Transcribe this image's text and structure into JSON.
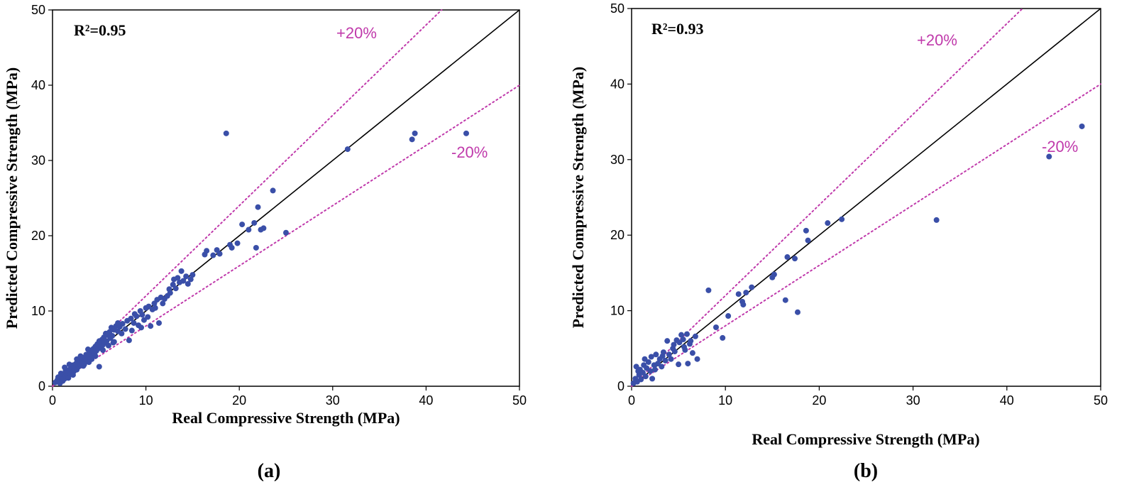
{
  "chart_data": [
    {
      "type": "scatter",
      "panel_label": "(a)",
      "r2_label": "R²=0.95",
      "xlabel": "Real Compressive Strength (MPa)",
      "ylabel": "Predicted Compressive Strength (MPa)",
      "xlim": [
        0,
        50
      ],
      "ylim": [
        0,
        50
      ],
      "xticks": [
        "0",
        "10",
        "20",
        "30",
        "40",
        "50"
      ],
      "yticks": [
        "0",
        "10",
        "20",
        "30",
        "40",
        "50"
      ],
      "plus_label": "+20%",
      "minus_label": "-20%",
      "point_color": "#3a4fa8",
      "band_color": "#c03aab",
      "points": [
        [
          0.3,
          0.5
        ],
        [
          0.5,
          0.8
        ],
        [
          0.6,
          1.2
        ],
        [
          0.8,
          0.4
        ],
        [
          1.0,
          1.1
        ],
        [
          1.1,
          0.7
        ],
        [
          1.2,
          1.5
        ],
        [
          1.3,
          1.0
        ],
        [
          1.4,
          2.0
        ],
        [
          1.5,
          1.3
        ],
        [
          1.6,
          1.8
        ],
        [
          1.7,
          1.1
        ],
        [
          1.8,
          2.2
        ],
        [
          1.9,
          1.6
        ],
        [
          2.0,
          2.4
        ],
        [
          2.1,
          1.9
        ],
        [
          2.2,
          2.8
        ],
        [
          2.3,
          2.0
        ],
        [
          2.4,
          2.5
        ],
        [
          2.5,
          3.0
        ],
        [
          2.6,
          2.2
        ],
        [
          2.7,
          2.9
        ],
        [
          2.8,
          2.6
        ],
        [
          2.9,
          3.3
        ],
        [
          3.0,
          2.8
        ],
        [
          3.1,
          3.6
        ],
        [
          3.2,
          3.1
        ],
        [
          3.3,
          2.7
        ],
        [
          3.4,
          3.8
        ],
        [
          3.5,
          3.3
        ],
        [
          3.6,
          4.2
        ],
        [
          3.7,
          3.5
        ],
        [
          3.8,
          4.0
        ],
        [
          3.9,
          3.2
        ],
        [
          4.0,
          4.5
        ],
        [
          4.1,
          3.9
        ],
        [
          4.2,
          4.8
        ],
        [
          4.3,
          4.1
        ],
        [
          4.4,
          5.0
        ],
        [
          4.5,
          4.4
        ],
        [
          4.6,
          5.3
        ],
        [
          4.7,
          4.7
        ],
        [
          4.8,
          5.6
        ],
        [
          4.9,
          5.0
        ],
        [
          5.0,
          2.6
        ],
        [
          5.1,
          5.9
        ],
        [
          5.2,
          5.2
        ],
        [
          5.3,
          6.2
        ],
        [
          5.4,
          5.5
        ],
        [
          5.5,
          6.5
        ],
        [
          5.6,
          5.8
        ],
        [
          5.7,
          7.0
        ],
        [
          5.8,
          6.0
        ],
        [
          5.9,
          6.8
        ],
        [
          6.0,
          5.4
        ],
        [
          6.1,
          7.2
        ],
        [
          6.2,
          6.4
        ],
        [
          6.3,
          7.8
        ],
        [
          6.4,
          6.7
        ],
        [
          6.5,
          5.8
        ],
        [
          6.6,
          7.5
        ],
        [
          6.8,
          8.0
        ],
        [
          7.0,
          7.3
        ],
        [
          7.2,
          7.9
        ],
        [
          7.5,
          8.3
        ],
        [
          7.8,
          7.6
        ],
        [
          8.0,
          8.7
        ],
        [
          8.2,
          6.1
        ],
        [
          8.4,
          9.0
        ],
        [
          8.5,
          7.4
        ],
        [
          8.7,
          8.4
        ],
        [
          9.0,
          9.3
        ],
        [
          9.2,
          8.1
        ],
        [
          9.4,
          10.0
        ],
        [
          9.6,
          9.5
        ],
        [
          9.8,
          8.8
        ],
        [
          10.0,
          10.4
        ],
        [
          10.3,
          10.6
        ],
        [
          10.5,
          8.0
        ],
        [
          10.7,
          10.2
        ],
        [
          10.9,
          11.0
        ],
        [
          11.2,
          11.5
        ],
        [
          11.4,
          8.4
        ],
        [
          11.6,
          11.8
        ],
        [
          12.0,
          11.6
        ],
        [
          12.3,
          12.0
        ],
        [
          12.6,
          12.4
        ],
        [
          12.9,
          13.5
        ],
        [
          13.2,
          13.0
        ],
        [
          13.4,
          14.4
        ],
        [
          13.6,
          13.8
        ],
        [
          13.8,
          15.3
        ],
        [
          14.0,
          14.0
        ],
        [
          14.3,
          14.6
        ],
        [
          14.5,
          13.6
        ],
        [
          15.0,
          14.8
        ],
        [
          16.3,
          17.5
        ],
        [
          16.5,
          18.0
        ],
        [
          17.2,
          17.4
        ],
        [
          17.6,
          18.1
        ],
        [
          17.9,
          17.6
        ],
        [
          18.6,
          33.6
        ],
        [
          19.0,
          18.8
        ],
        [
          19.2,
          18.4
        ],
        [
          19.8,
          19.0
        ],
        [
          20.3,
          21.5
        ],
        [
          21.0,
          20.8
        ],
        [
          21.6,
          21.7
        ],
        [
          21.8,
          18.4
        ],
        [
          22.0,
          23.8
        ],
        [
          22.3,
          20.8
        ],
        [
          22.6,
          21.0
        ],
        [
          23.6,
          26.0
        ],
        [
          25.0,
          20.4
        ],
        [
          31.6,
          31.5
        ],
        [
          38.5,
          32.8
        ],
        [
          38.8,
          33.6
        ],
        [
          44.3,
          33.6
        ],
        [
          0.9,
          1.7
        ],
        [
          1.3,
          2.5
        ],
        [
          1.8,
          2.9
        ],
        [
          2.2,
          1.5
        ],
        [
          2.6,
          3.6
        ],
        [
          3.0,
          4.0
        ],
        [
          3.4,
          2.9
        ],
        [
          3.8,
          4.9
        ],
        [
          4.2,
          3.6
        ],
        [
          4.6,
          4.0
        ],
        [
          5.0,
          6.0
        ],
        [
          5.4,
          4.8
        ],
        [
          6.0,
          6.9
        ],
        [
          6.6,
          5.9
        ],
        [
          7.0,
          8.4
        ],
        [
          7.4,
          7.0
        ],
        [
          8.8,
          9.6
        ],
        [
          9.5,
          7.8
        ],
        [
          10.2,
          9.2
        ],
        [
          11.0,
          10.4
        ],
        [
          11.8,
          11.0
        ],
        [
          12.5,
          12.9
        ],
        [
          13.0,
          14.2
        ],
        [
          14.8,
          14.2
        ]
      ]
    },
    {
      "type": "scatter",
      "panel_label": "(b)",
      "r2_label": "R²=0.93",
      "xlabel": "Real Compressive Strength (MPa)",
      "ylabel": "Predicted Compressive Strength (MPa)",
      "xlim": [
        0,
        50
      ],
      "ylim": [
        0,
        50
      ],
      "xticks": [
        "0",
        "10",
        "20",
        "30",
        "40",
        "50"
      ],
      "yticks": [
        "0",
        "10",
        "20",
        "30",
        "40",
        "50"
      ],
      "plus_label": "+20%",
      "minus_label": "-20%",
      "point_color": "#3a4fa8",
      "band_color": "#c03aab",
      "points": [
        [
          0.2,
          0.4
        ],
        [
          0.4,
          1.0
        ],
        [
          0.5,
          2.6
        ],
        [
          0.6,
          0.6
        ],
        [
          0.8,
          1.5
        ],
        [
          0.9,
          2.2
        ],
        [
          1.0,
          0.9
        ],
        [
          1.2,
          1.8
        ],
        [
          1.3,
          2.8
        ],
        [
          1.5,
          1.3
        ],
        [
          1.6,
          2.4
        ],
        [
          1.8,
          3.2
        ],
        [
          2.0,
          2.0
        ],
        [
          2.1,
          3.9
        ],
        [
          2.2,
          1.0
        ],
        [
          2.4,
          2.8
        ],
        [
          2.6,
          4.2
        ],
        [
          2.8,
          3.0
        ],
        [
          3.0,
          3.6
        ],
        [
          3.2,
          2.6
        ],
        [
          3.4,
          4.5
        ],
        [
          3.6,
          3.4
        ],
        [
          3.8,
          6.0
        ],
        [
          4.0,
          4.2
        ],
        [
          4.2,
          3.6
        ],
        [
          4.4,
          5.0
        ],
        [
          4.6,
          4.6
        ],
        [
          4.8,
          6.1
        ],
        [
          5.0,
          2.9
        ],
        [
          5.1,
          5.8
        ],
        [
          5.3,
          6.8
        ],
        [
          5.5,
          6.2
        ],
        [
          5.7,
          4.8
        ],
        [
          5.9,
          6.9
        ],
        [
          6.0,
          3.0
        ],
        [
          6.2,
          5.6
        ],
        [
          6.5,
          4.4
        ],
        [
          6.8,
          6.6
        ],
        [
          7.0,
          3.6
        ],
        [
          8.2,
          12.7
        ],
        [
          9.0,
          7.8
        ],
        [
          9.7,
          6.4
        ],
        [
          10.3,
          9.3
        ],
        [
          11.4,
          12.2
        ],
        [
          11.8,
          11.2
        ],
        [
          11.9,
          10.8
        ],
        [
          12.2,
          12.4
        ],
        [
          12.8,
          13.1
        ],
        [
          15.0,
          14.4
        ],
        [
          15.2,
          14.8
        ],
        [
          16.4,
          11.4
        ],
        [
          16.6,
          17.1
        ],
        [
          17.4,
          16.9
        ],
        [
          17.7,
          9.8
        ],
        [
          18.6,
          20.6
        ],
        [
          18.8,
          19.3
        ],
        [
          20.9,
          21.6
        ],
        [
          22.4,
          22.1
        ],
        [
          32.5,
          22.0
        ],
        [
          44.5,
          30.4
        ],
        [
          48.0,
          34.4
        ],
        [
          0.7,
          2.0
        ],
        [
          1.4,
          3.6
        ],
        [
          2.5,
          2.2
        ],
        [
          3.3,
          4.0
        ],
        [
          4.5,
          5.5
        ],
        [
          5.6,
          5.2
        ],
        [
          6.3,
          6.0
        ]
      ]
    }
  ]
}
